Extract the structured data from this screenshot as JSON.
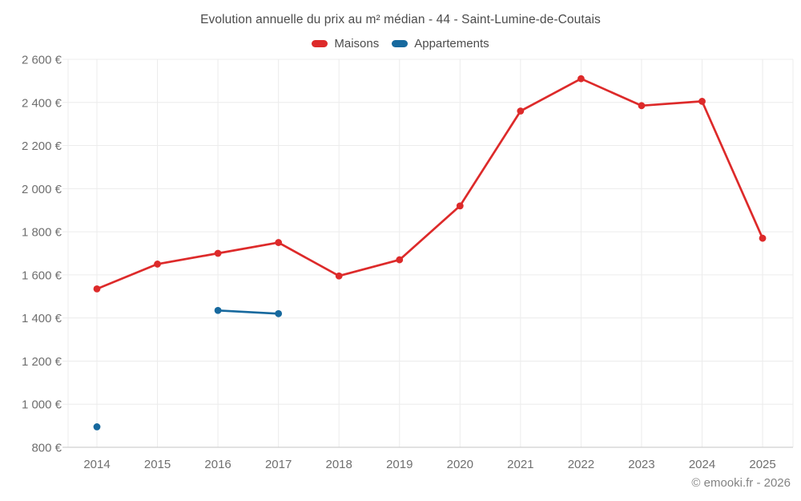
{
  "chart_data": {
    "type": "line",
    "title": "Evolution annuelle du prix au m² médian - 44 - Saint-Lumine-de-Coutais",
    "categories": [
      "2014",
      "2015",
      "2016",
      "2017",
      "2018",
      "2019",
      "2020",
      "2021",
      "2022",
      "2023",
      "2024",
      "2025"
    ],
    "series": [
      {
        "name": "Maisons",
        "color": "#dd2a2a",
        "values": [
          1535,
          1650,
          1700,
          1750,
          1595,
          1670,
          1920,
          2360,
          2510,
          2385,
          2405,
          1770
        ]
      },
      {
        "name": "Appartements",
        "color": "#17699e",
        "values": [
          895,
          null,
          1435,
          1420,
          null,
          null,
          null,
          null,
          null,
          null,
          null,
          null
        ]
      }
    ],
    "ylim": [
      800,
      2600
    ],
    "ytick_step": 200,
    "ytick_labels": [
      "800 €",
      "1 000 €",
      "1 200 €",
      "1 400 €",
      "1 600 €",
      "1 800 €",
      "2 000 €",
      "2 200 €",
      "2 400 €",
      "2 600 €"
    ],
    "ylabel": "",
    "xlabel": "",
    "grid": true,
    "legend_position": "top"
  },
  "colors": {
    "grid": "#ececec",
    "axis": "#c6c6c6",
    "tick_text": "#6f6f6f",
    "title_text": "#4c4c4c"
  },
  "footer": {
    "copyright": "© emooki.fr - 2026"
  }
}
